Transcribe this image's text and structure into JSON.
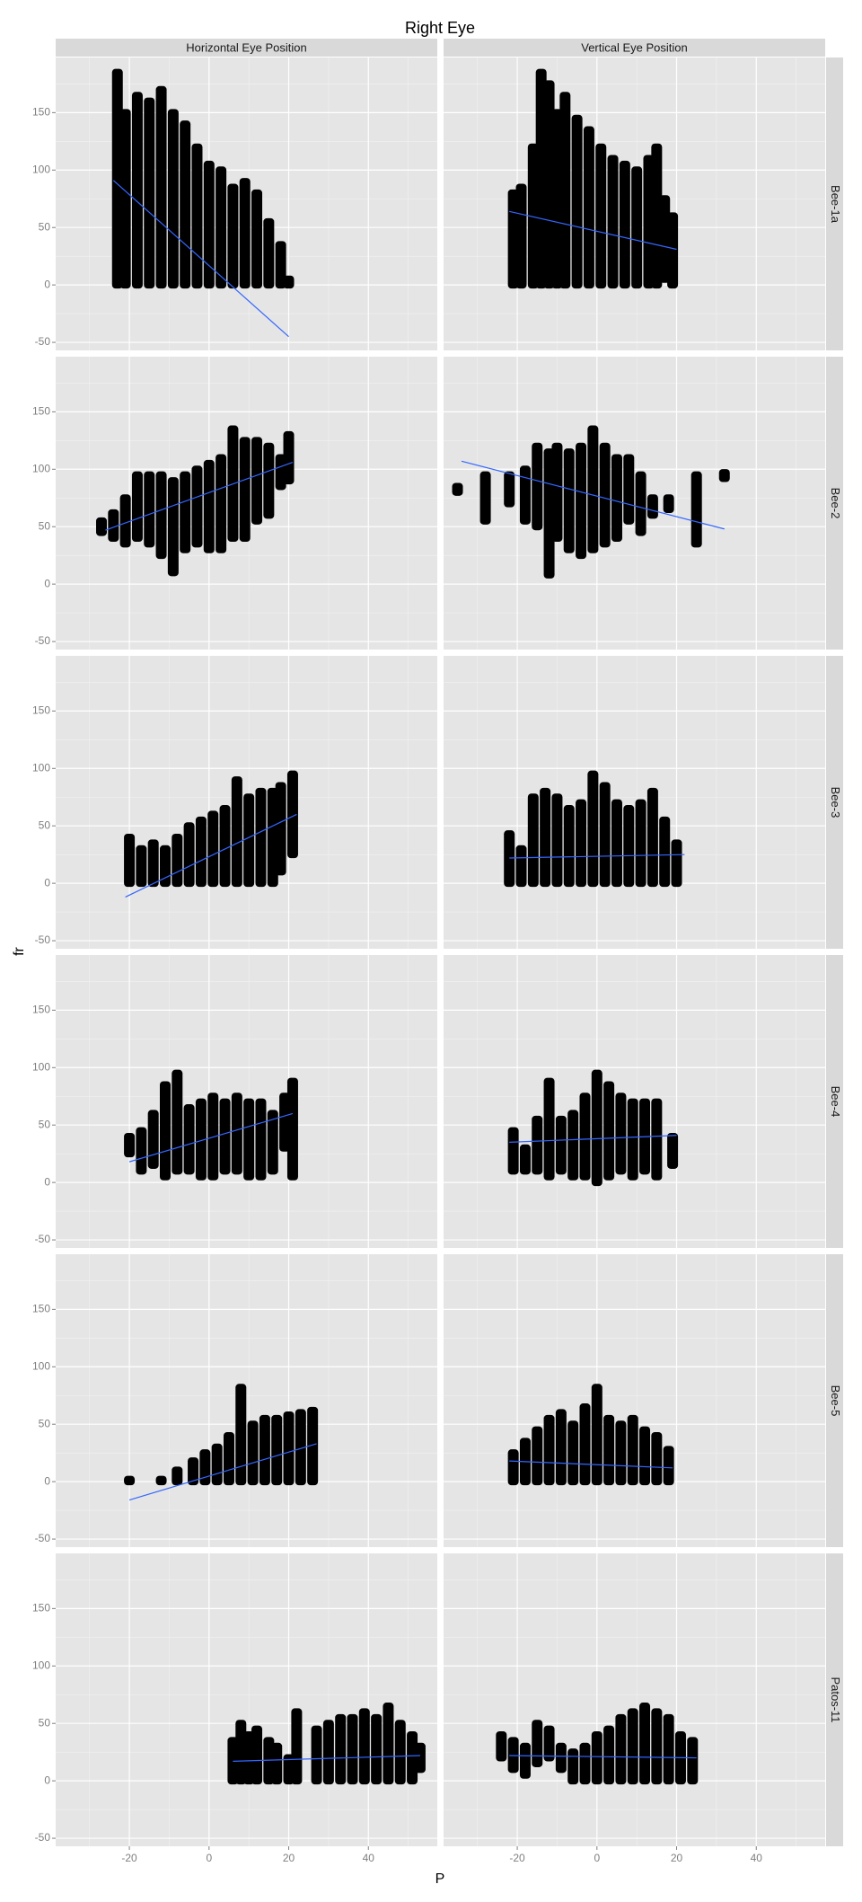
{
  "chart_data": {
    "type": "scatter",
    "title": "Right Eye",
    "x_label": "P",
    "y_label": "fr",
    "column_facets": [
      "Horizontal Eye Position",
      "Vertical Eye Position"
    ],
    "row_facets": [
      "Bee-1a",
      "Bee-2",
      "Bee-3",
      "Bee-4",
      "Bee-5",
      "Patos-11"
    ],
    "xlim": [
      -38.5,
      57.3
    ],
    "ylim": [
      -57,
      198
    ],
    "xticks": [
      -20,
      0,
      20,
      40
    ],
    "yticks": [
      -50,
      0,
      50,
      100,
      150
    ],
    "grid": true,
    "point_color": "#000000",
    "fit_color": "#3366ff",
    "panels": [
      [
        {
          "x": [
            -23,
            -21,
            -18,
            -15,
            -12,
            -9,
            -6,
            -3,
            0,
            3,
            6,
            9,
            12,
            15,
            18,
            20
          ],
          "ymin": [
            0,
            0,
            0,
            0,
            0,
            0,
            0,
            0,
            0,
            0,
            0,
            0,
            0,
            0,
            0,
            0
          ],
          "ymax": [
            185,
            150,
            165,
            160,
            170,
            150,
            140,
            120,
            105,
            100,
            85,
            90,
            80,
            55,
            35,
            5
          ],
          "fit_x": [
            -24,
            20
          ],
          "fit_y": [
            91,
            -45
          ]
        },
        {
          "x": [
            -21,
            -19,
            -16,
            -14,
            -12,
            -10,
            -8,
            -5,
            -2,
            1,
            4,
            7,
            10,
            13,
            15,
            17,
            19
          ],
          "ymin": [
            0,
            0,
            0,
            0,
            0,
            0,
            0,
            0,
            0,
            0,
            0,
            0,
            0,
            0,
            0,
            5,
            0
          ],
          "ymax": [
            80,
            85,
            120,
            185,
            175,
            150,
            165,
            145,
            135,
            120,
            110,
            105,
            100,
            110,
            120,
            75,
            60
          ],
          "fit_x": [
            -22,
            20
          ],
          "fit_y": [
            64,
            31
          ]
        }
      ],
      [
        {
          "x": [
            -27,
            -24,
            -21,
            -18,
            -15,
            -12,
            -9,
            -6,
            -3,
            0,
            3,
            6,
            9,
            12,
            15,
            18,
            20
          ],
          "ymin": [
            45,
            40,
            35,
            40,
            35,
            25,
            10,
            30,
            35,
            30,
            30,
            40,
            40,
            55,
            60,
            85,
            90
          ],
          "ymax": [
            55,
            62,
            75,
            95,
            95,
            95,
            90,
            95,
            100,
            105,
            110,
            135,
            125,
            125,
            120,
            110,
            130
          ],
          "fit_x": [
            -26,
            21
          ],
          "fit_y": [
            47,
            106
          ]
        },
        {
          "x": [
            -35,
            -28,
            -22,
            -18,
            -15,
            -12,
            -10,
            -7,
            -4,
            -1,
            2,
            5,
            8,
            11,
            14,
            18,
            25,
            32
          ],
          "ymin": [
            80,
            55,
            70,
            55,
            50,
            8,
            40,
            30,
            25,
            30,
            35,
            40,
            55,
            45,
            60,
            65,
            35,
            92
          ],
          "ymax": [
            85,
            95,
            95,
            100,
            120,
            115,
            120,
            115,
            120,
            135,
            120,
            110,
            110,
            95,
            75,
            75,
            95,
            97
          ],
          "fit_x": [
            -34,
            32
          ],
          "fit_y": [
            107,
            48
          ]
        }
      ],
      [
        {
          "x": [
            -20,
            -17,
            -14,
            -11,
            -8,
            -5,
            -2,
            1,
            4,
            7,
            10,
            13,
            16,
            18,
            21
          ],
          "ymin": [
            0,
            0,
            0,
            0,
            0,
            0,
            0,
            0,
            0,
            0,
            0,
            0,
            0,
            10,
            25
          ],
          "ymax": [
            40,
            30,
            35,
            30,
            40,
            50,
            55,
            60,
            65,
            90,
            75,
            80,
            80,
            85,
            95
          ],
          "fit_x": [
            -21,
            22
          ],
          "fit_y": [
            -12,
            60
          ]
        },
        {
          "x": [
            -22,
            -19,
            -16,
            -13,
            -10,
            -7,
            -4,
            -1,
            2,
            5,
            8,
            11,
            14,
            17,
            20
          ],
          "ymin": [
            0,
            0,
            0,
            0,
            0,
            0,
            0,
            0,
            0,
            0,
            0,
            0,
            0,
            0,
            0
          ],
          "ymax": [
            43,
            30,
            75,
            80,
            75,
            65,
            70,
            95,
            85,
            70,
            65,
            70,
            80,
            55,
            35
          ],
          "fit_x": [
            -22,
            22
          ],
          "fit_y": [
            22,
            25
          ]
        }
      ],
      [
        {
          "x": [
            -20,
            -17,
            -14,
            -11,
            -8,
            -5,
            -2,
            1,
            4,
            7,
            10,
            13,
            16,
            19,
            21
          ],
          "ymin": [
            25,
            10,
            15,
            5,
            10,
            10,
            5,
            5,
            10,
            10,
            5,
            5,
            10,
            30,
            5
          ],
          "ymax": [
            40,
            45,
            60,
            85,
            95,
            65,
            70,
            75,
            70,
            75,
            70,
            70,
            60,
            75,
            88
          ],
          "fit_x": [
            -20,
            21
          ],
          "fit_y": [
            18,
            60
          ]
        },
        {
          "x": [
            -21,
            -18,
            -15,
            -12,
            -9,
            -6,
            -3,
            0,
            3,
            6,
            9,
            12,
            15,
            19
          ],
          "ymin": [
            10,
            10,
            10,
            5,
            10,
            5,
            5,
            0,
            5,
            10,
            5,
            10,
            5,
            15
          ],
          "ymax": [
            45,
            30,
            55,
            88,
            55,
            60,
            75,
            95,
            85,
            75,
            70,
            70,
            70,
            40
          ],
          "fit_x": [
            -22,
            20
          ],
          "fit_y": [
            35,
            41
          ]
        }
      ],
      [
        {
          "x": [
            -20,
            -12,
            -8,
            -4,
            -1,
            2,
            5,
            8,
            11,
            14,
            17,
            20,
            23,
            26
          ],
          "ymin": [
            0,
            0,
            0,
            0,
            0,
            0,
            0,
            0,
            0,
            0,
            0,
            0,
            0,
            0
          ],
          "ymax": [
            2,
            2,
            10,
            18,
            25,
            30,
            40,
            82,
            50,
            55,
            55,
            58,
            60,
            62
          ],
          "fit_x": [
            -20,
            27
          ],
          "fit_y": [
            -16,
            33
          ]
        },
        {
          "x": [
            -21,
            -18,
            -15,
            -12,
            -9,
            -6,
            -3,
            0,
            3,
            6,
            9,
            12,
            15,
            18
          ],
          "ymin": [
            0,
            0,
            0,
            0,
            0,
            0,
            0,
            0,
            0,
            0,
            0,
            0,
            0,
            0
          ],
          "ymax": [
            25,
            35,
            45,
            55,
            60,
            50,
            65,
            82,
            55,
            50,
            55,
            45,
            40,
            28
          ],
          "fit_x": [
            -22,
            19
          ],
          "fit_y": [
            18,
            12
          ]
        }
      ],
      [
        {
          "x": [
            6,
            8,
            10,
            12,
            15,
            17,
            20,
            22,
            27,
            30,
            33,
            36,
            39,
            42,
            45,
            48,
            51,
            53
          ],
          "ymin": [
            0,
            0,
            0,
            0,
            0,
            0,
            0,
            0,
            0,
            0,
            0,
            0,
            0,
            0,
            0,
            0,
            0,
            10
          ],
          "ymax": [
            35,
            50,
            40,
            45,
            35,
            30,
            20,
            60,
            45,
            50,
            55,
            55,
            60,
            55,
            65,
            50,
            40,
            30
          ],
          "fit_x": [
            6,
            53
          ],
          "fit_y": [
            17,
            22
          ]
        },
        {
          "x": [
            -24,
            -21,
            -18,
            -15,
            -12,
            -9,
            -6,
            -3,
            0,
            3,
            6,
            9,
            12,
            15,
            18,
            21,
            24
          ],
          "ymin": [
            20,
            10,
            5,
            15,
            20,
            10,
            0,
            0,
            0,
            0,
            0,
            0,
            0,
            0,
            0,
            0,
            0
          ],
          "ymax": [
            40,
            35,
            30,
            50,
            45,
            30,
            25,
            30,
            40,
            45,
            55,
            60,
            65,
            60,
            55,
            40,
            35
          ],
          "fit_x": [
            -22,
            25
          ],
          "fit_y": [
            22,
            20
          ]
        }
      ]
    ]
  }
}
